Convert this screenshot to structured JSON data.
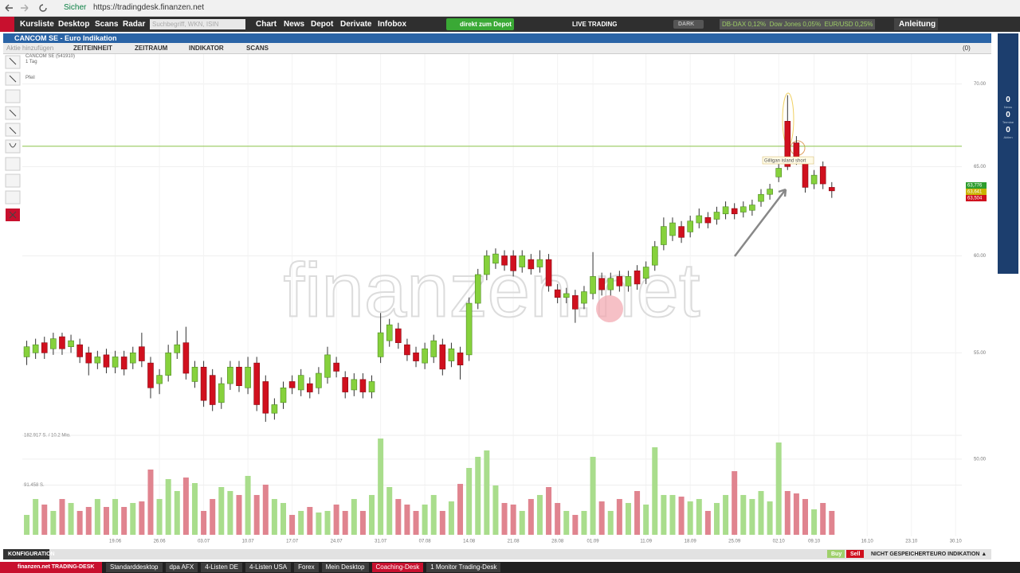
{
  "browser": {
    "security": "Sicher",
    "url": "https://tradingdesk.finanzen.net"
  },
  "nav": {
    "items": [
      "Kursliste",
      "Desktop",
      "Scans",
      "Radar"
    ],
    "search_placeholder": "Suchbegriff, WKN, ISIN",
    "menu": [
      "Chart",
      "News",
      "Depot",
      "Derivate",
      "Infobox"
    ],
    "depot_button": "direkt zum Depot",
    "live_trading": "LIVE TRADING",
    "dark": "DARK",
    "ticker": "DB-DAX 0,12%  Dow Jones 0,05%  EUR/USD 0,25%",
    "guide": "Anleitung"
  },
  "window": {
    "title": "CANCOM SE - Euro Indikation",
    "add": "Aktie hinzufügen",
    "toolbar": [
      "ZEITEINHEIT",
      "ZEITRAUM",
      "INDIKATOR",
      "SCANS"
    ],
    "count": "(0)",
    "instrument": "CANCOM SE (541910)",
    "period": "1 Tag",
    "tool": "Pfeil"
  },
  "sidebar": {
    "counters": [
      {
        "value": "0",
        "label": "News"
      },
      {
        "value": "0",
        "label": "Termine"
      },
      {
        "value": "0",
        "label": "Aktien"
      }
    ]
  },
  "chart": {
    "type": "candlestick",
    "log_scale": true,
    "grid": true,
    "up_color": "#86d13c",
    "down_color": "#d0101e",
    "volume_up_color": "#a9dd8c",
    "volume_down_color": "#e0848f",
    "ylim": [
      46.45,
      71.9
    ],
    "yticks": [
      {
        "value": 50,
        "label": "50.00"
      },
      {
        "value": 55,
        "label": "55.00"
      },
      {
        "value": 60,
        "label": "60.00"
      },
      {
        "value": 65,
        "label": "65.00"
      },
      {
        "value": 70,
        "label": "70.00"
      }
    ],
    "xlim": [
      -0.5,
      105.7
    ],
    "xticks": [
      {
        "value": 10,
        "label": "19.06"
      },
      {
        "value": 15,
        "label": "26.06"
      },
      {
        "value": 20,
        "label": "03.07"
      },
      {
        "value": 25,
        "label": "10.07"
      },
      {
        "value": 30,
        "label": "17.07"
      },
      {
        "value": 35,
        "label": "24.07"
      },
      {
        "value": 40,
        "label": "31.07"
      },
      {
        "value": 45,
        "label": "07.08"
      },
      {
        "value": 50,
        "label": "14.08"
      },
      {
        "value": 55,
        "label": "21.08"
      },
      {
        "value": 60,
        "label": "28.08"
      },
      {
        "value": 64,
        "label": "01.09"
      },
      {
        "value": 70,
        "label": "11.09"
      },
      {
        "value": 75,
        "label": "18.09"
      },
      {
        "value": 80,
        "label": "25.09"
      },
      {
        "value": 85,
        "label": "02.10"
      },
      {
        "value": 89,
        "label": "09.10"
      },
      {
        "value": 95,
        "label": "16.10"
      },
      {
        "value": 100,
        "label": "23.10"
      },
      {
        "value": 105,
        "label": "30.10"
      }
    ],
    "candles": [
      [
        54.8,
        55.6,
        54.4,
        55.3
      ],
      [
        55.0,
        55.7,
        54.7,
        55.4
      ],
      [
        55.5,
        55.8,
        54.7,
        55.0
      ],
      [
        55.2,
        56.0,
        54.9,
        55.7
      ],
      [
        55.8,
        56.0,
        54.9,
        55.2
      ],
      [
        55.3,
        55.9,
        55.0,
        55.6
      ],
      [
        55.4,
        55.7,
        54.5,
        54.8
      ],
      [
        55.0,
        55.3,
        53.9,
        54.5
      ],
      [
        54.5,
        55.1,
        54.2,
        54.8
      ],
      [
        54.9,
        55.2,
        54.0,
        54.3
      ],
      [
        54.3,
        55.1,
        54.0,
        54.8
      ],
      [
        54.8,
        55.1,
        53.9,
        54.2
      ],
      [
        54.5,
        55.3,
        54.2,
        55.0
      ],
      [
        55.3,
        56.0,
        54.3,
        54.6
      ],
      [
        54.5,
        54.8,
        52.8,
        53.3
      ],
      [
        53.5,
        54.2,
        53.0,
        53.9
      ],
      [
        53.9,
        55.4,
        53.6,
        55.0
      ],
      [
        55.0,
        56.1,
        54.7,
        55.4
      ],
      [
        55.5,
        56.3,
        53.7,
        54.0
      ],
      [
        53.6,
        54.6,
        53.3,
        54.3
      ],
      [
        54.3,
        54.6,
        52.4,
        52.7
      ],
      [
        53.9,
        54.2,
        52.2,
        52.5
      ],
      [
        52.6,
        53.8,
        52.3,
        53.5
      ],
      [
        53.5,
        54.6,
        53.2,
        54.3
      ],
      [
        54.3,
        54.6,
        53.1,
        53.4
      ],
      [
        53.3,
        54.8,
        53.0,
        54.3
      ],
      [
        54.5,
        54.8,
        52.2,
        52.5
      ],
      [
        53.6,
        53.9,
        51.7,
        52.1
      ],
      [
        52.1,
        52.8,
        51.8,
        52.5
      ],
      [
        52.6,
        53.6,
        52.3,
        53.3
      ],
      [
        53.6,
        53.9,
        53.0,
        53.3
      ],
      [
        53.2,
        54.2,
        52.9,
        53.9
      ],
      [
        53.5,
        53.8,
        52.8,
        53.1
      ],
      [
        53.3,
        54.3,
        53.0,
        54.0
      ],
      [
        53.8,
        55.3,
        53.5,
        54.9
      ],
      [
        54.5,
        54.8,
        53.8,
        54.1
      ],
      [
        53.8,
        54.1,
        52.8,
        53.1
      ],
      [
        53.2,
        54.0,
        52.9,
        53.7
      ],
      [
        53.7,
        54.0,
        52.8,
        53.1
      ],
      [
        53.1,
        53.9,
        52.8,
        53.6
      ],
      [
        54.8,
        57.0,
        54.5,
        56.0
      ],
      [
        55.6,
        56.7,
        55.3,
        56.4
      ],
      [
        56.2,
        56.5,
        55.2,
        55.5
      ],
      [
        55.4,
        55.7,
        54.6,
        54.9
      ],
      [
        55.0,
        55.3,
        54.3,
        54.6
      ],
      [
        54.5,
        55.5,
        54.2,
        55.2
      ],
      [
        54.8,
        55.9,
        54.5,
        55.6
      ],
      [
        55.4,
        55.7,
        53.9,
        54.2
      ],
      [
        54.6,
        55.5,
        54.3,
        55.2
      ],
      [
        55.0,
        55.3,
        53.7,
        54.4
      ],
      [
        54.9,
        57.8,
        54.6,
        57.5
      ],
      [
        57.5,
        59.3,
        57.2,
        59.0
      ],
      [
        59.0,
        60.3,
        58.7,
        60.0
      ],
      [
        59.6,
        60.4,
        59.3,
        60.1
      ],
      [
        60.0,
        60.3,
        59.2,
        59.5
      ],
      [
        60.0,
        60.3,
        58.9,
        59.2
      ],
      [
        59.4,
        60.3,
        59.1,
        60.0
      ],
      [
        59.8,
        60.1,
        59.0,
        59.3
      ],
      [
        59.4,
        60.3,
        59.1,
        59.8
      ],
      [
        59.8,
        60.1,
        58.1,
        58.4
      ],
      [
        58.2,
        58.5,
        57.5,
        57.8
      ],
      [
        57.8,
        58.3,
        57.5,
        58.0
      ],
      [
        57.9,
        58.2,
        56.5,
        57.2
      ],
      [
        57.5,
        58.4,
        57.2,
        58.1
      ],
      [
        58.0,
        60.2,
        57.7,
        58.9
      ],
      [
        58.8,
        59.1,
        57.9,
        58.2
      ],
      [
        58.2,
        59.1,
        57.9,
        58.8
      ],
      [
        58.9,
        59.2,
        58.1,
        58.4
      ],
      [
        58.4,
        59.2,
        58.1,
        58.9
      ],
      [
        59.2,
        59.5,
        58.2,
        58.5
      ],
      [
        58.8,
        59.7,
        58.5,
        59.4
      ],
      [
        59.5,
        60.8,
        59.2,
        60.5
      ],
      [
        60.6,
        62.1,
        60.3,
        61.6
      ],
      [
        61.1,
        62.1,
        60.8,
        61.8
      ],
      [
        61.6,
        61.9,
        60.7,
        61.0
      ],
      [
        61.3,
        62.2,
        61.0,
        61.9
      ],
      [
        61.8,
        62.6,
        61.5,
        62.2
      ],
      [
        62.1,
        62.4,
        61.5,
        61.8
      ],
      [
        62.0,
        62.7,
        61.7,
        62.4
      ],
      [
        62.3,
        63.0,
        62.0,
        62.7
      ],
      [
        62.6,
        62.9,
        62.0,
        62.3
      ],
      [
        62.4,
        63.0,
        62.1,
        62.7
      ],
      [
        62.5,
        63.1,
        62.2,
        62.8
      ],
      [
        63.0,
        63.7,
        62.7,
        63.4
      ],
      [
        63.4,
        64.0,
        63.1,
        63.7
      ],
      [
        64.4,
        65.2,
        64.1,
        64.9
      ],
      [
        67.7,
        69.3,
        64.8,
        65.0
      ],
      [
        66.4,
        66.8,
        65.1,
        65.4
      ],
      [
        65.2,
        65.5,
        63.5,
        63.8
      ],
      [
        64.0,
        64.8,
        63.7,
        64.5
      ],
      [
        65.0,
        65.3,
        63.7,
        64.0
      ],
      [
        63.8,
        64.1,
        63.2,
        63.6
      ]
    ],
    "volume": [
      36600,
      65800,
      55600,
      43900,
      65800,
      58500,
      43900,
      51200,
      65800,
      51200,
      65800,
      51200,
      58500,
      61400,
      120000,
      65800,
      102400,
      80500,
      105300,
      95100,
      43900,
      65800,
      87800,
      80500,
      73200,
      108300,
      73200,
      92200,
      65800,
      58500,
      36600,
      43900,
      51200,
      41000,
      43900,
      55600,
      43900,
      65800,
      43900,
      73200,
      177000,
      87800,
      65800,
      55600,
      43900,
      55600,
      73200,
      43900,
      61400,
      93600,
      122900,
      143400,
      155100,
      90700,
      58500,
      55600,
      43900,
      65800,
      73200,
      87800,
      58500,
      43900,
      36600,
      43900,
      143400,
      61400,
      43900,
      65800,
      58500,
      80500,
      55600,
      160900,
      73200,
      73200,
      70200,
      61400,
      65800,
      43900,
      58500,
      73200,
      117000,
      73200,
      65800,
      80500,
      61400,
      169700,
      80500,
      76100,
      65800,
      46800,
      58500,
      43900
    ],
    "volume_ylim": [
      0,
      182917
    ],
    "volume_ticks": [
      {
        "value": 182917,
        "label": "182.917 S. / 10.2 Mio."
      },
      {
        "value": 91458,
        "label": "91.458 S."
      }
    ],
    "hline": {
      "value": 66.2,
      "color": "#8bc34a"
    },
    "annotation": "Gilligan island short",
    "price_labels": [
      {
        "text": "63,776",
        "color": "#2e9d2e"
      },
      {
        "text": "63,641",
        "color": "#c9b400"
      },
      {
        "text": "63,504",
        "color": "#d0101e"
      }
    ],
    "watermark": "finanzen.net"
  },
  "status": {
    "config": "KONFIGURATION",
    "buy": "Buy",
    "sell": "Sell",
    "saved": "NICHT GESPEICHERT",
    "market": "EURO INDIKATION ▲"
  },
  "taskbar": {
    "brand": "finanzen.net TRADING-DESK",
    "tabs": [
      "Standarddesktop",
      "dpa AFX",
      "4-Listen DE",
      "4-Listen USA",
      "Forex",
      "Mein Desktop",
      "Coaching-Desk",
      "1 Monitor Trading-Desk"
    ],
    "active": 6
  }
}
